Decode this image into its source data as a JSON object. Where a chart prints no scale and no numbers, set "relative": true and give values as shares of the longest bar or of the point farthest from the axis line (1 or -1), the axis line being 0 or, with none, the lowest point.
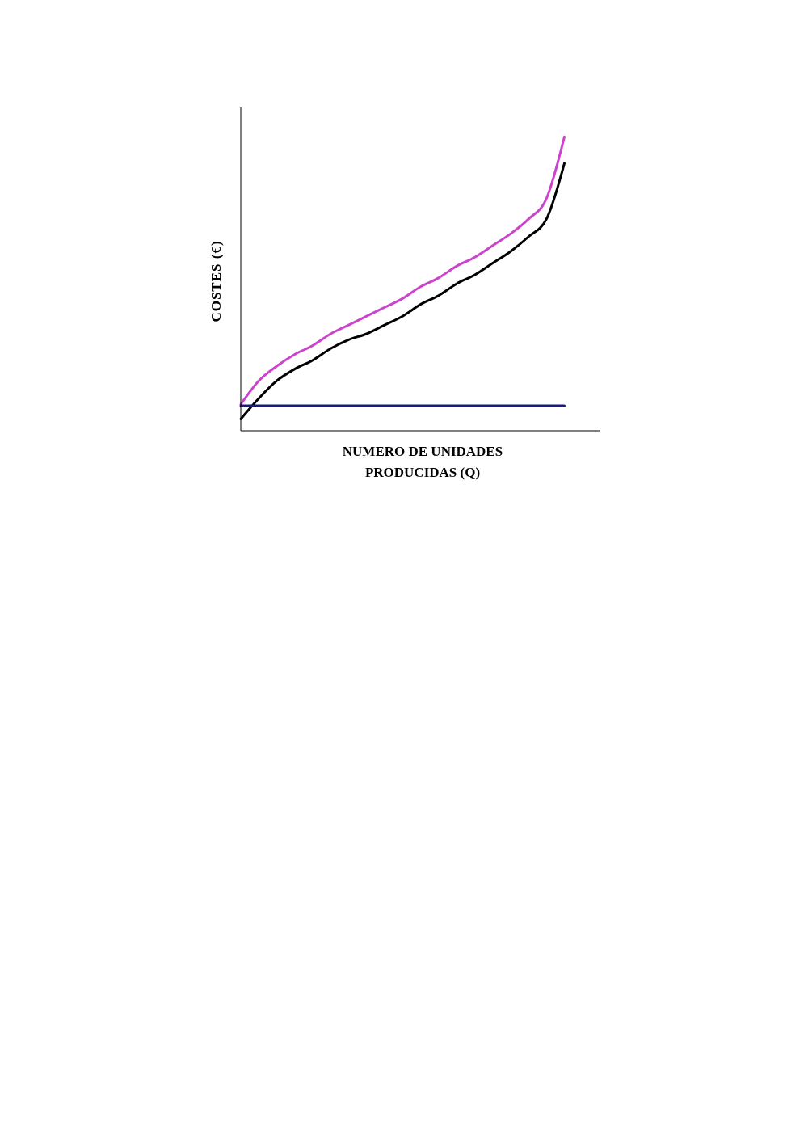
{
  "chart_data": {
    "type": "line",
    "relative": true,
    "xlabel": "NUMERO DE UNIDADES PRODUCIDAS (Q)",
    "ylabel": "COSTES (€)",
    "marker": "none",
    "line_style": "solid",
    "grid": false,
    "legend": false,
    "categories": [
      null,
      null,
      null,
      null,
      null,
      null,
      null,
      null,
      null,
      null,
      null,
      null,
      null,
      null,
      null,
      null,
      null,
      null,
      null,
      null,
      null
    ],
    "series": [
      {
        "color": "#cc44cc",
        "values": [
          0.09,
          0.17,
          0.22,
          0.26,
          0.29,
          0.33,
          0.36,
          0.39,
          0.42,
          0.45,
          0.49,
          0.52,
          0.56,
          0.59,
          0.63,
          0.67,
          0.72,
          0.79,
          1,
          null,
          null
        ]
      },
      {
        "color": "#000000",
        "values": [
          0.04,
          0.11,
          0.17,
          0.21,
          0.24,
          0.28,
          0.31,
          0.33,
          0.36,
          0.39,
          0.43,
          0.46,
          0.5,
          0.53,
          0.57,
          0.61,
          0.66,
          0.72,
          0.91,
          null,
          null
        ]
      },
      {
        "color": "#1a1a80",
        "values": [
          0.085,
          0.085,
          0.085,
          0.085,
          0.085,
          0.085,
          0.085,
          0.085,
          0.085,
          0.085,
          0.085,
          0.085,
          0.085,
          0.085,
          0.085,
          0.085,
          0.085,
          0.085,
          0.085,
          null,
          null
        ]
      }
    ]
  }
}
